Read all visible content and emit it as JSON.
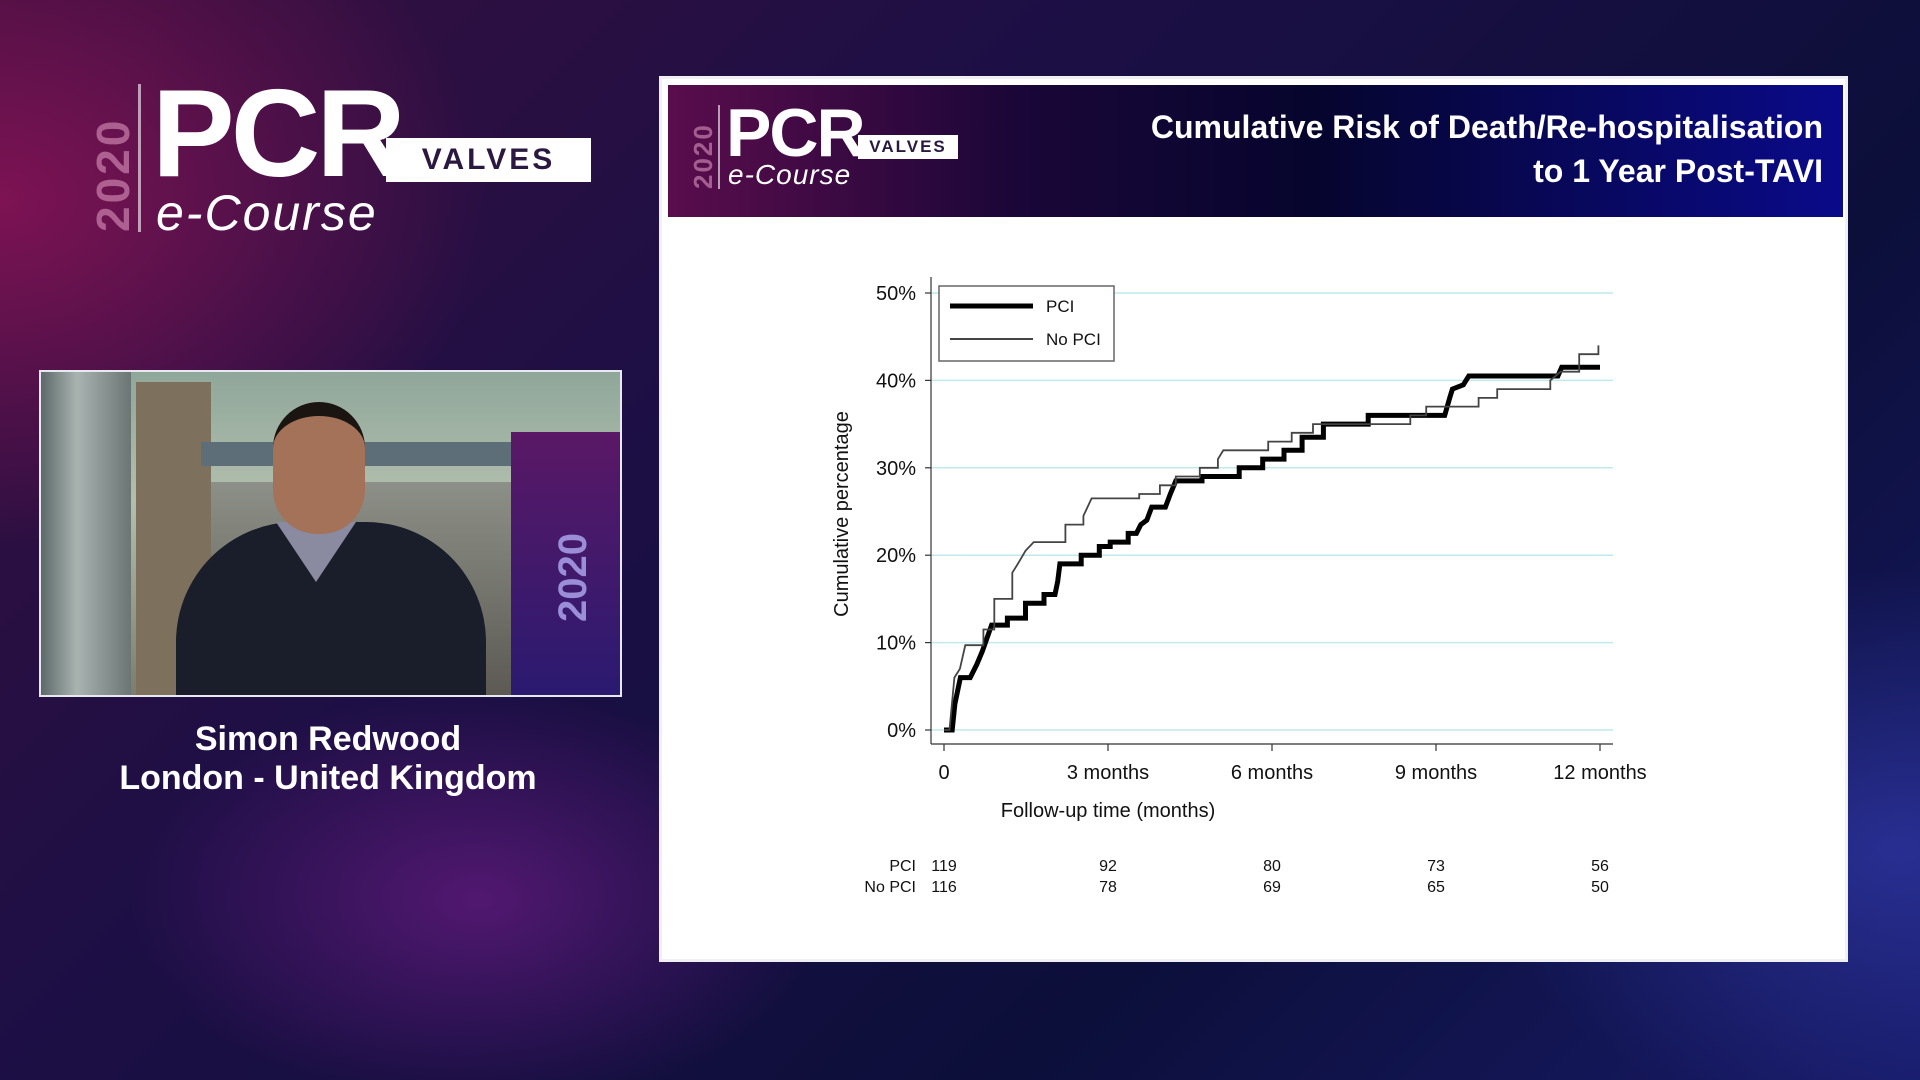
{
  "brand": {
    "year": "2020",
    "name": "PCR",
    "sub": "VALVES",
    "course": "e-Course"
  },
  "speaker": {
    "name": "Simon Redwood",
    "location": "London - United Kingdom",
    "video_overlay_year": "2020"
  },
  "slide": {
    "title_line1": "Cumulative Risk of Death/Re-hospitalisation",
    "title_line2": "to 1 Year Post-TAVI"
  },
  "colors": {
    "pci": "#000000",
    "no_pci": "#444444",
    "gridline": "#bfe9ec",
    "header_left": "#5a0d4c",
    "header_right": "#0a0a8a"
  },
  "chart_data": {
    "type": "line",
    "subtype": "step (Kaplan-Meier cumulative incidence)",
    "xlabel": "Follow-up time (months)",
    "ylabel": "Cumulative percentage",
    "xlim": [
      0,
      12
    ],
    "ylim": [
      0,
      50
    ],
    "x_ticks": [
      {
        "value": 0,
        "label": "0"
      },
      {
        "value": 3,
        "label": "3 months"
      },
      {
        "value": 6,
        "label": "6 months"
      },
      {
        "value": 9,
        "label": "9 months"
      },
      {
        "value": 12,
        "label": "12 months"
      }
    ],
    "y_ticks": [
      {
        "value": 0,
        "label": "0%"
      },
      {
        "value": 10,
        "label": "10%"
      },
      {
        "value": 20,
        "label": "20%"
      },
      {
        "value": 30,
        "label": "30%"
      },
      {
        "value": 40,
        "label": "40%"
      },
      {
        "value": 50,
        "label": "50%"
      }
    ],
    "grid": "horizontal",
    "legend_position": "top-left",
    "series": [
      {
        "name": "PCI",
        "style": "thick",
        "points": [
          [
            0,
            0
          ],
          [
            0.15,
            0
          ],
          [
            0.2,
            3
          ],
          [
            0.3,
            6
          ],
          [
            0.48,
            6
          ],
          [
            0.6,
            7.5
          ],
          [
            0.7,
            9
          ],
          [
            0.87,
            12
          ],
          [
            1.16,
            12
          ],
          [
            1.16,
            12.8
          ],
          [
            1.49,
            12.8
          ],
          [
            1.49,
            14.5
          ],
          [
            1.83,
            14.5
          ],
          [
            1.83,
            15.5
          ],
          [
            2.03,
            15.5
          ],
          [
            2.08,
            17
          ],
          [
            2.12,
            19
          ],
          [
            2.51,
            19
          ],
          [
            2.51,
            20
          ],
          [
            2.84,
            20
          ],
          [
            2.84,
            21
          ],
          [
            3.04,
            21
          ],
          [
            3.04,
            21.5
          ],
          [
            3.37,
            21.5
          ],
          [
            3.37,
            22.5
          ],
          [
            3.52,
            22.5
          ],
          [
            3.6,
            23.5
          ],
          [
            3.71,
            24
          ],
          [
            3.8,
            25.5
          ],
          [
            4.05,
            25.5
          ],
          [
            4.14,
            27
          ],
          [
            4.24,
            28.5
          ],
          [
            4.72,
            28.5
          ],
          [
            4.72,
            29
          ],
          [
            5.4,
            29
          ],
          [
            5.4,
            30
          ],
          [
            5.83,
            30
          ],
          [
            5.83,
            31
          ],
          [
            6.22,
            31
          ],
          [
            6.22,
            32
          ],
          [
            6.55,
            32
          ],
          [
            6.55,
            33.5
          ],
          [
            6.94,
            33.5
          ],
          [
            6.94,
            35
          ],
          [
            7.76,
            35
          ],
          [
            7.76,
            36
          ],
          [
            9.16,
            36
          ],
          [
            9.25,
            38
          ],
          [
            9.3,
            39
          ],
          [
            9.5,
            39.5
          ],
          [
            9.6,
            40.5
          ],
          [
            11.23,
            40.5
          ],
          [
            11.3,
            41.5
          ],
          [
            12,
            41.5
          ]
        ]
      },
      {
        "name": "No PCI",
        "style": "thin",
        "points": [
          [
            0,
            0
          ],
          [
            0.1,
            0
          ],
          [
            0.19,
            6
          ],
          [
            0.29,
            7
          ],
          [
            0.39,
            9.7
          ],
          [
            0.72,
            9.7
          ],
          [
            0.72,
            11.5
          ],
          [
            0.92,
            11.5
          ],
          [
            0.92,
            15
          ],
          [
            1.25,
            15
          ],
          [
            1.25,
            18
          ],
          [
            1.35,
            19
          ],
          [
            1.49,
            20.5
          ],
          [
            1.64,
            21.5
          ],
          [
            2.22,
            21.5
          ],
          [
            2.22,
            23.5
          ],
          [
            2.55,
            23.5
          ],
          [
            2.55,
            24.5
          ],
          [
            2.7,
            26.5
          ],
          [
            3.57,
            26.5
          ],
          [
            3.57,
            27
          ],
          [
            3.95,
            27
          ],
          [
            3.95,
            28
          ],
          [
            4.24,
            28
          ],
          [
            4.24,
            29
          ],
          [
            4.68,
            29
          ],
          [
            4.68,
            30
          ],
          [
            5.01,
            30
          ],
          [
            5.01,
            31
          ],
          [
            5.11,
            32
          ],
          [
            5.93,
            32
          ],
          [
            5.93,
            33
          ],
          [
            6.36,
            33
          ],
          [
            6.36,
            34
          ],
          [
            6.75,
            34
          ],
          [
            6.75,
            35
          ],
          [
            8.53,
            35
          ],
          [
            8.53,
            36
          ],
          [
            8.82,
            36
          ],
          [
            8.82,
            37
          ],
          [
            9.78,
            37
          ],
          [
            9.78,
            38
          ],
          [
            10.12,
            38
          ],
          [
            10.12,
            39
          ],
          [
            11.09,
            39
          ],
          [
            11.09,
            40
          ],
          [
            11.28,
            41
          ],
          [
            11.62,
            41
          ],
          [
            11.62,
            43
          ],
          [
            11.97,
            43
          ],
          [
            11.97,
            44
          ]
        ]
      }
    ],
    "risk_table": {
      "times": [
        0,
        3,
        6,
        9,
        12
      ],
      "rows": [
        {
          "label": "PCI",
          "values": [
            "119",
            "92",
            "80",
            "73",
            "56"
          ]
        },
        {
          "label": "No PCI",
          "values": [
            "116",
            "78",
            "69",
            "65",
            "50"
          ]
        }
      ]
    }
  }
}
